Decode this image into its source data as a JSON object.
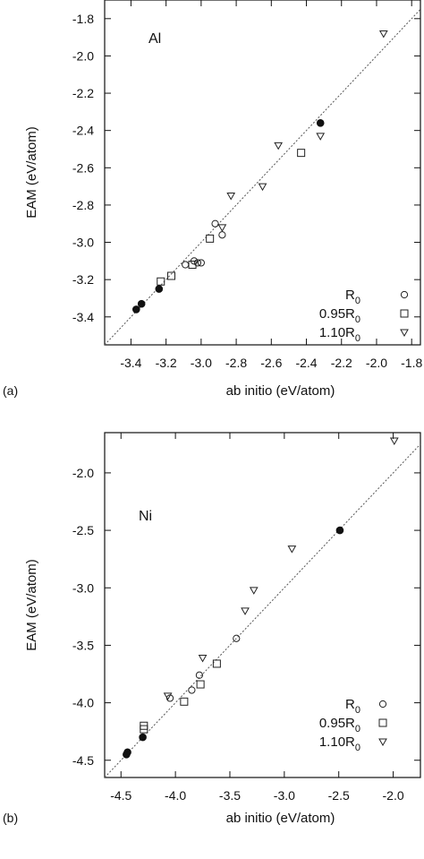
{
  "chart_data": [
    {
      "type": "scatter",
      "panel_label": "(a)",
      "element_label": "Al",
      "xlabel": "ab initio (eV/atom)",
      "ylabel": "EAM (eV/atom)",
      "xlim": [
        -3.55,
        -1.75
      ],
      "ylim": [
        -3.55,
        -1.7
      ],
      "xticks": [
        -3.4,
        -3.2,
        -3.0,
        -2.8,
        -2.6,
        -2.4,
        -2.2,
        -2.0,
        -1.8
      ],
      "xtick_labels": [
        "-3.4",
        "-3.2",
        "-3.0",
        "-2.8",
        "-2.6",
        "-2.4",
        "-2.2",
        "-2.0",
        "-1.8"
      ],
      "yticks": [
        -3.4,
        -3.2,
        -3.0,
        -2.8,
        -2.6,
        -2.4,
        -2.2,
        -2.0,
        -1.8
      ],
      "ytick_labels": [
        "-3.4",
        "-3.2",
        "-3.0",
        "-2.8",
        "-2.6",
        "-2.4",
        "-2.2",
        "-2.0",
        "-1.8"
      ],
      "reference_line": "y = x",
      "legend_position": "bottom-right",
      "series": [
        {
          "name_main": "R",
          "name_sub": "0",
          "marker": "circle",
          "points": [
            [
              -2.92,
              -2.9
            ],
            [
              -2.88,
              -2.96
            ],
            [
              -3.09,
              -3.12
            ],
            [
              -3.04,
              -3.1
            ],
            [
              -3.02,
              -3.11
            ],
            [
              -3.0,
              -3.11
            ]
          ]
        },
        {
          "name_main": "0.95R",
          "name_sub": "0",
          "marker": "square",
          "points": [
            [
              -2.43,
              -2.52
            ],
            [
              -2.95,
              -2.98
            ],
            [
              -3.05,
              -3.12
            ],
            [
              -3.17,
              -3.18
            ],
            [
              -3.23,
              -3.21
            ]
          ]
        },
        {
          "name_main": "1.10R",
          "name_sub": "0",
          "marker": "triangle-down",
          "points": [
            [
              -1.96,
              -1.88
            ],
            [
              -2.56,
              -2.48
            ],
            [
              -2.32,
              -2.43
            ],
            [
              -2.65,
              -2.7
            ],
            [
              -2.83,
              -2.75
            ],
            [
              -2.88,
              -2.92
            ]
          ]
        },
        {
          "name_main": "",
          "name_sub": "",
          "marker": "filled-circle",
          "points": [
            [
              -2.32,
              -2.36
            ],
            [
              -3.34,
              -3.33
            ],
            [
              -3.37,
              -3.36
            ],
            [
              -3.24,
              -3.25
            ]
          ]
        }
      ]
    },
    {
      "type": "scatter",
      "panel_label": "(b)",
      "element_label": "Ni",
      "xlabel": "ab initio (eV/atom)",
      "ylabel": "EAM (eV/atom)",
      "xlim": [
        -4.65,
        -1.75
      ],
      "ylim": [
        -4.65,
        -1.65
      ],
      "xticks": [
        -4.5,
        -4.0,
        -3.5,
        -3.0,
        -2.5,
        -2.0
      ],
      "xtick_labels": [
        "-4.5",
        "-4.0",
        "-3.5",
        "-3.0",
        "-2.5",
        "-2.0"
      ],
      "yticks": [
        -4.5,
        -4.0,
        -3.5,
        -3.0,
        -2.5,
        -2.0
      ],
      "ytick_labels": [
        "-4.5",
        "-4.0",
        "-3.5",
        "-3.0",
        "-2.5",
        "-2.0"
      ],
      "reference_line": "y = x",
      "legend_position": "bottom-right",
      "series": [
        {
          "name_main": "R",
          "name_sub": "0",
          "marker": "circle",
          "points": [
            [
              -3.44,
              -3.44
            ],
            [
              -3.78,
              -3.76
            ],
            [
              -3.85,
              -3.89
            ],
            [
              -4.05,
              -3.96
            ]
          ]
        },
        {
          "name_main": "0.95R",
          "name_sub": "0",
          "marker": "square",
          "points": [
            [
              -3.62,
              -3.66
            ],
            [
              -3.77,
              -3.84
            ],
            [
              -3.92,
              -3.99
            ],
            [
              -4.29,
              -4.2
            ],
            [
              -4.29,
              -4.23
            ]
          ]
        },
        {
          "name_main": "1.10R",
          "name_sub": "0",
          "marker": "triangle-down",
          "points": [
            [
              -1.99,
              -1.72
            ],
            [
              -2.93,
              -2.66
            ],
            [
              -3.28,
              -3.02
            ],
            [
              -3.36,
              -3.2
            ],
            [
              -3.75,
              -3.61
            ],
            [
              -4.07,
              -3.94
            ]
          ]
        },
        {
          "name_main": "",
          "name_sub": "",
          "marker": "filled-circle",
          "points": [
            [
              -2.49,
              -2.5
            ],
            [
              -4.3,
              -4.3
            ],
            [
              -4.44,
              -4.43
            ],
            [
              -4.45,
              -4.45
            ]
          ]
        }
      ]
    }
  ]
}
